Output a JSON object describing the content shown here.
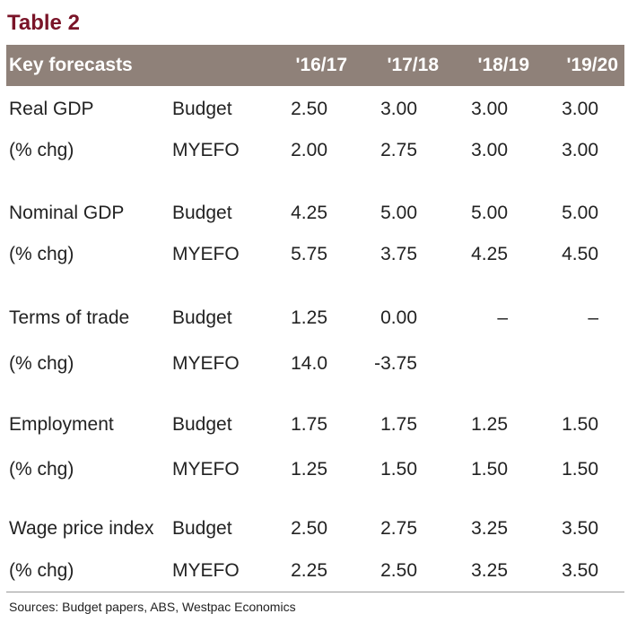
{
  "title": "Table 2",
  "header": {
    "label": "Key forecasts",
    "years": [
      "'16/17",
      "'17/18",
      "'18/19",
      "'19/20"
    ]
  },
  "rows": [
    {
      "label": "Real GDP",
      "type": "Budget",
      "values": [
        "2.50",
        "3.00",
        "3.00",
        "3.00"
      ]
    },
    {
      "label": "(% chg)",
      "type": "MYEFO",
      "values": [
        "2.00",
        "2.75",
        "3.00",
        "3.00"
      ]
    },
    {
      "label": "Nominal GDP",
      "type": "Budget",
      "values": [
        "4.25",
        "5.00",
        "5.00",
        "5.00"
      ]
    },
    {
      "label": "(% chg)",
      "type": "MYEFO",
      "values": [
        "5.75",
        "3.75",
        "4.25",
        "4.50"
      ]
    },
    {
      "label": "Terms of trade",
      "type": "Budget",
      "values": [
        "1.25",
        "0.00",
        "–",
        "–"
      ]
    },
    {
      "label": "(% chg)",
      "type": "MYEFO",
      "values": [
        "14.0",
        "-3.75",
        "",
        ""
      ]
    },
    {
      "label": "Employment",
      "type": "Budget",
      "values": [
        "1.75",
        "1.75",
        "1.25",
        "1.50"
      ]
    },
    {
      "label": "(% chg)",
      "type": "MYEFO",
      "values": [
        "1.25",
        "1.50",
        "1.50",
        "1.50"
      ]
    },
    {
      "label": "Wage price index",
      "type": "Budget",
      "values": [
        "2.50",
        "2.75",
        "3.25",
        "3.50"
      ]
    },
    {
      "label": "(% chg)",
      "type": "MYEFO",
      "values": [
        "2.25",
        "2.50",
        "3.25",
        "3.50"
      ]
    }
  ],
  "sources": "Sources: Budget papers, ABS, Westpac Economics"
}
